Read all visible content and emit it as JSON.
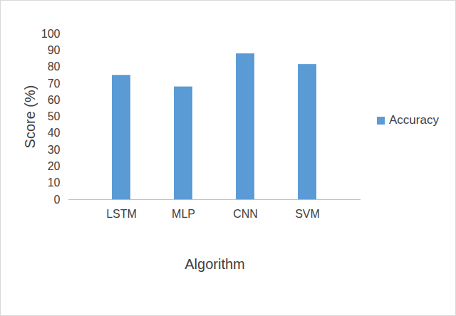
{
  "chart_data": {
    "type": "bar",
    "x_label": "Algorithm",
    "y_label": "Score (%)",
    "categories": [
      "LSTM",
      "MLP",
      "CNN",
      "SVM"
    ],
    "series": [
      {
        "name": "Accuracy",
        "color": "#5b9bd5",
        "values": [
          75,
          68,
          88,
          81.5
        ]
      }
    ],
    "ylim": [
      0,
      100
    ],
    "yticks": [
      0,
      10,
      20,
      30,
      40,
      50,
      60,
      70,
      80,
      90,
      100
    ],
    "grid": false,
    "legend": "right"
  }
}
